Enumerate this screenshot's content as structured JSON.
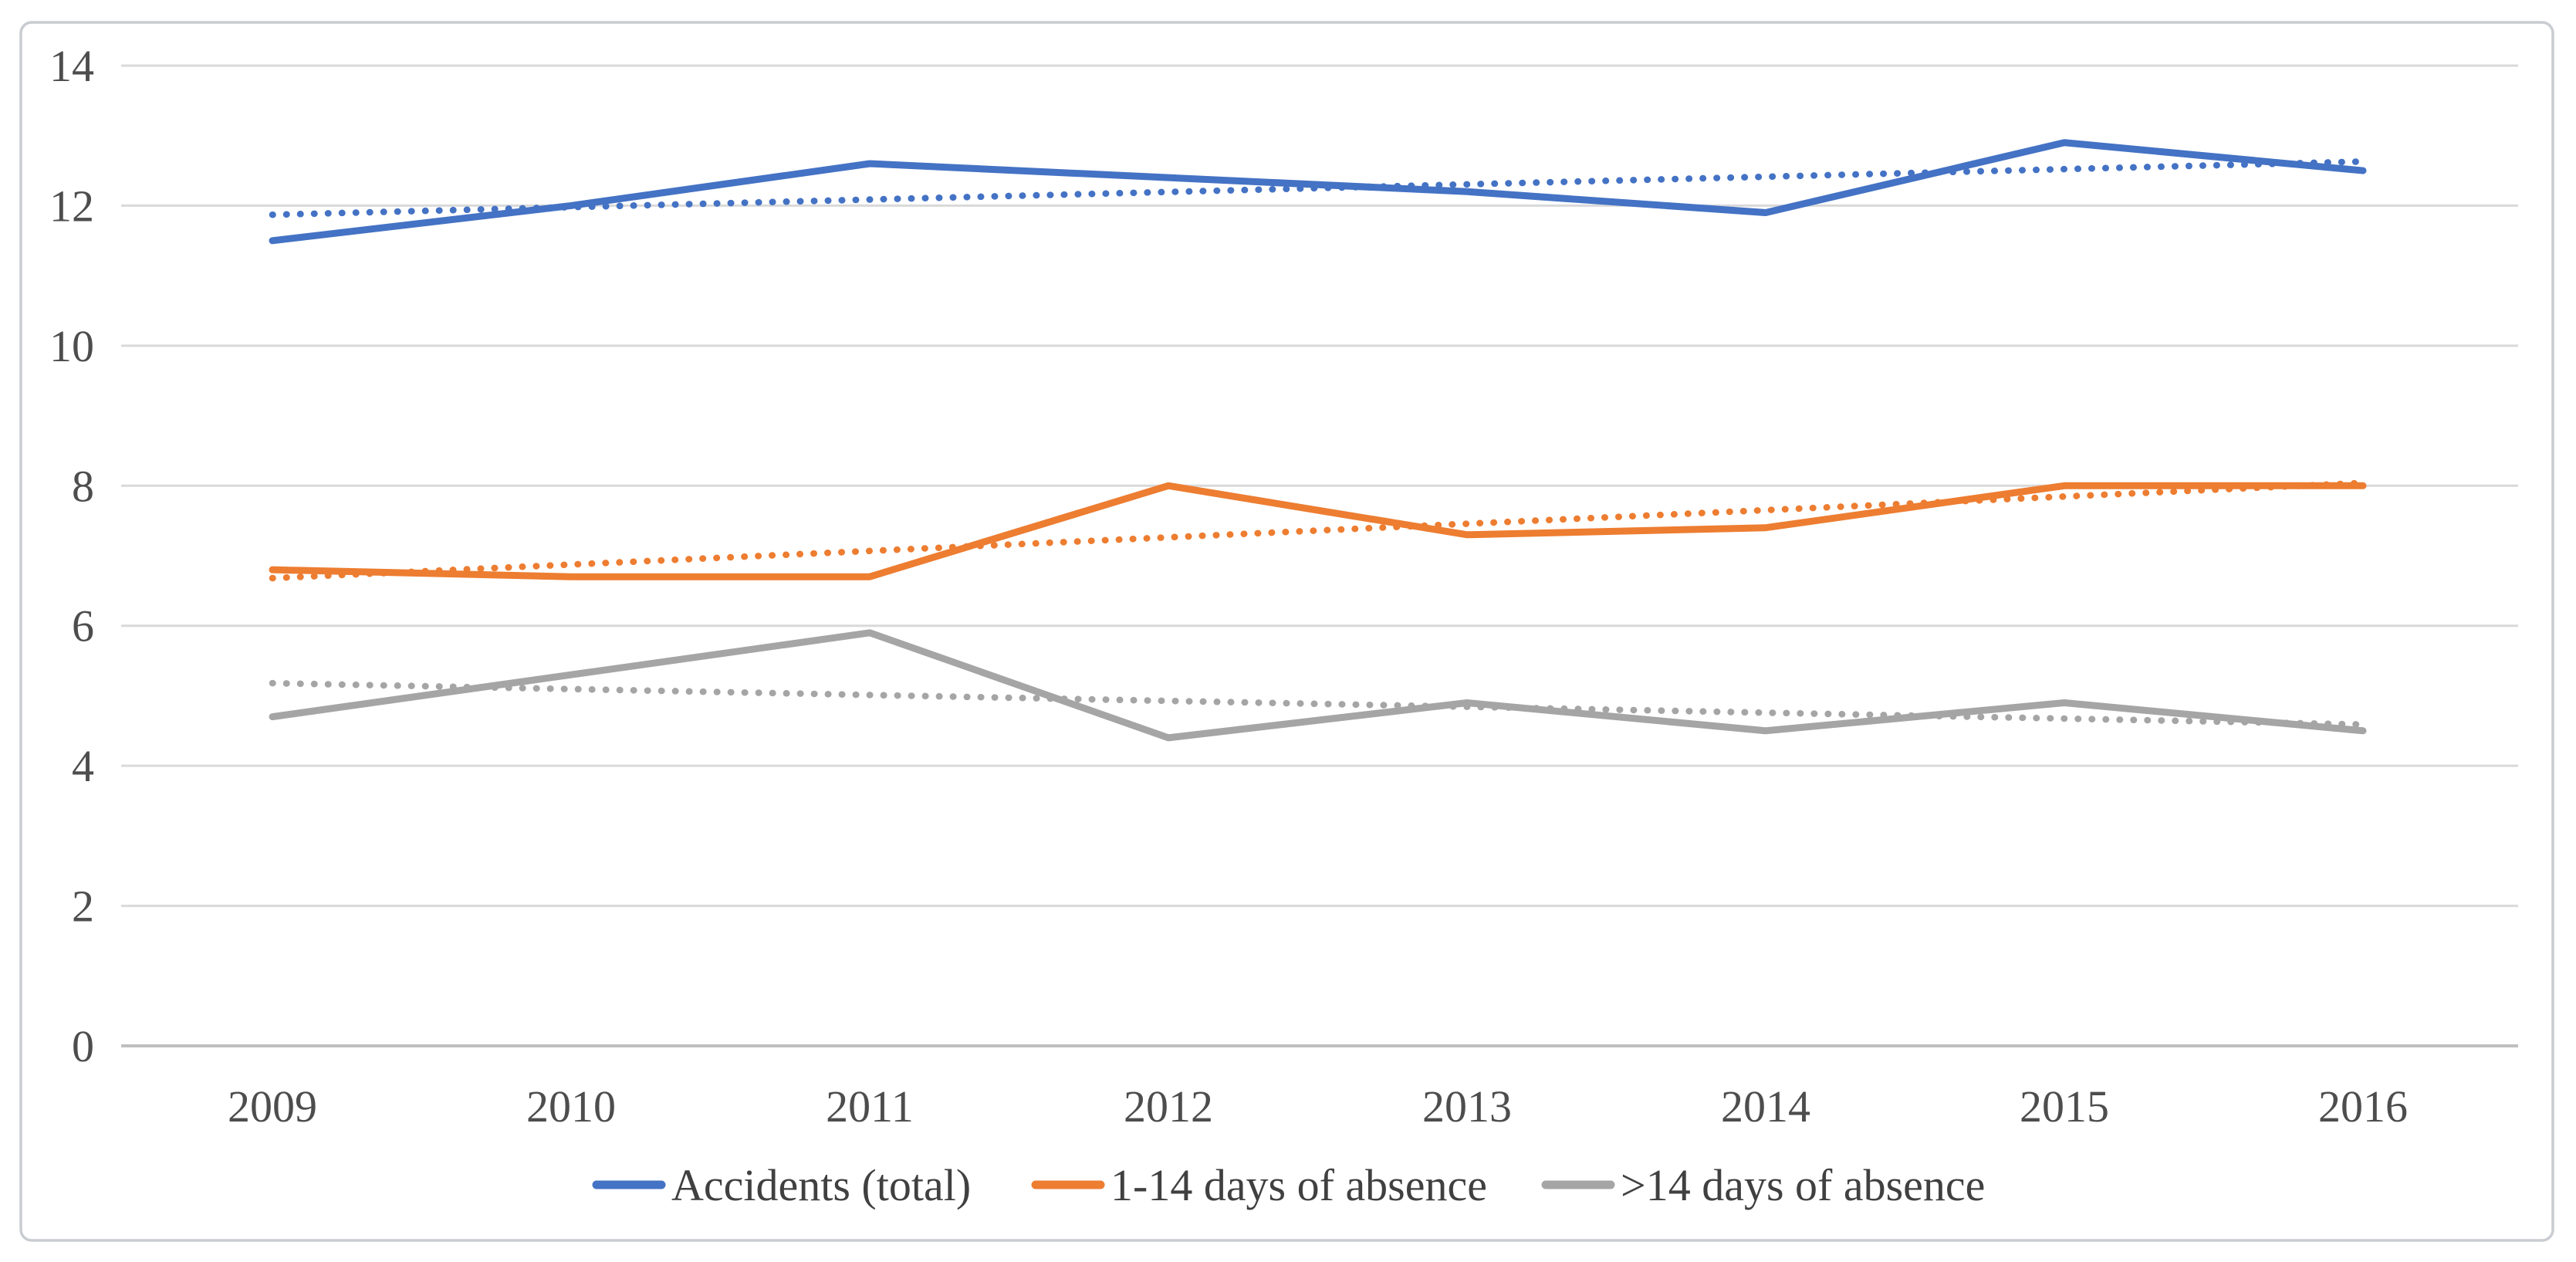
{
  "figure": {
    "background": "#FFFFFF",
    "border_color": "#C9CCD1"
  },
  "chart_data": {
    "type": "line",
    "title": "",
    "xlabel": "",
    "ylabel": "",
    "categories": [
      "2009",
      "2010",
      "2011",
      "2012",
      "2013",
      "2014",
      "2015",
      "2016"
    ],
    "series": [
      {
        "name": "Accidents (total)",
        "color": "#4472C4",
        "values": [
          11.5,
          12.0,
          12.6,
          12.4,
          12.2,
          11.9,
          12.9,
          12.5
        ],
        "trendline": {
          "style": "dotted",
          "start": 11.87,
          "end": 12.63
        }
      },
      {
        "name": "1-14 days of absence",
        "color": "#ED7D31",
        "values": [
          6.8,
          6.7,
          6.7,
          8.0,
          7.3,
          7.4,
          8.0,
          8.0
        ],
        "trendline": {
          "style": "dotted",
          "start": 6.68,
          "end": 8.04
        }
      },
      {
        "name": ">14 days of absence",
        "color": "#A5A5A5",
        "values": [
          4.7,
          5.3,
          5.9,
          4.4,
          4.9,
          4.5,
          4.9,
          4.5
        ],
        "trendline": {
          "style": "dotted",
          "start": 5.18,
          "end": 4.59
        }
      }
    ],
    "ylim": [
      0,
      14
    ],
    "y_ticks": [
      "0",
      "2",
      "4",
      "6",
      "8",
      "10",
      "12",
      "14"
    ],
    "grid": true,
    "legend_position": "bottom",
    "gridline_color": "#D9D9D9",
    "axis_line_color": "#BFBFBF",
    "tick_text_color": "#4D4D4D",
    "legend_text_color": "#404040"
  }
}
